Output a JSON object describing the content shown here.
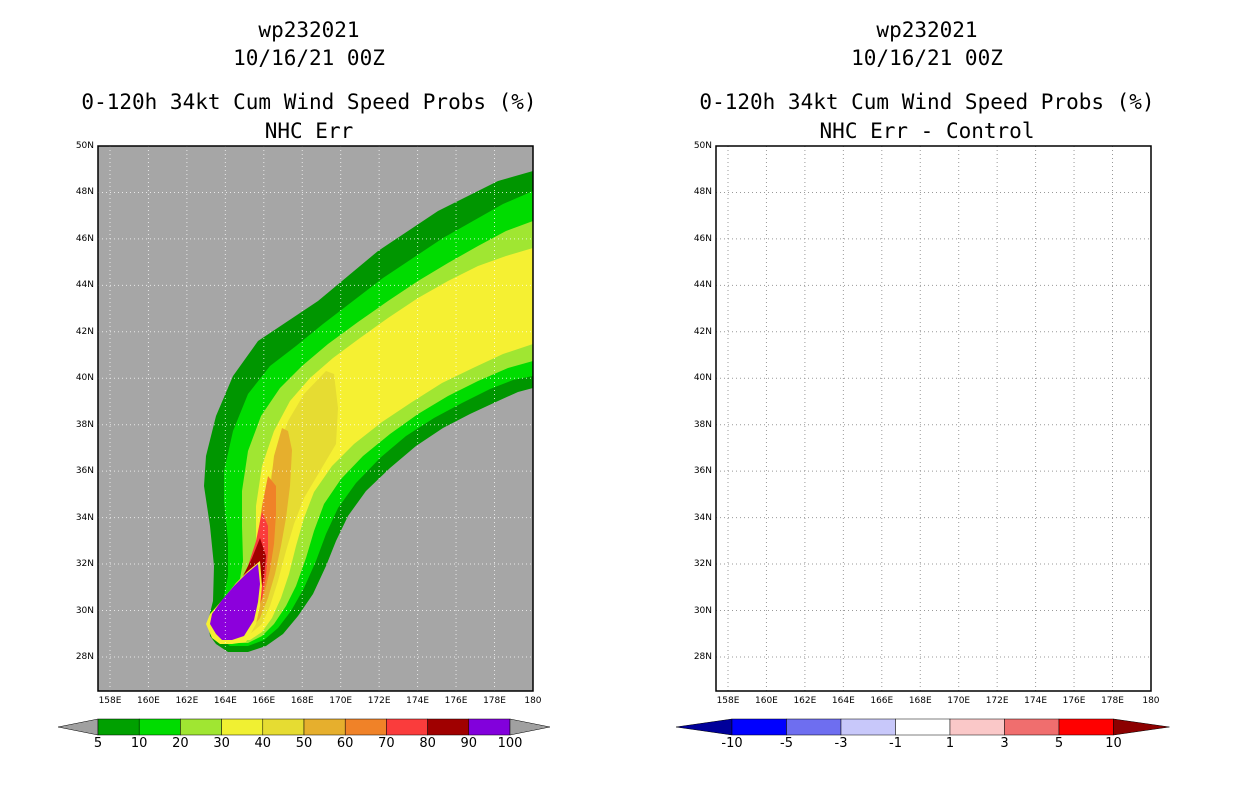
{
  "left_panel": {
    "title_line1": "wp232021",
    "title_line2": "10/16/21 00Z",
    "title_line3": "0-120h 34kt Cum Wind Speed Probs (%)",
    "title_line4": "NHC Err",
    "lat_labels": [
      "50N",
      "48N",
      "46N",
      "44N",
      "42N",
      "40N",
      "38N",
      "36N",
      "34N",
      "32N",
      "30N",
      "28N"
    ],
    "lon_labels": [
      "158E",
      "160E",
      "162E",
      "164E",
      "166E",
      "168E",
      "170E",
      "172E",
      "174E",
      "176E",
      "178E",
      "180"
    ],
    "colorbar_labels": [
      "5",
      "10",
      "20",
      "30",
      "40",
      "50",
      "60",
      "70",
      "80",
      "90",
      "100"
    ],
    "colorbar_colors": [
      "#a0a0a0",
      "#00a000",
      "#00dc00",
      "#a0e632",
      "#f0f032",
      "#e6dc32",
      "#e6af2d",
      "#f08228",
      "#fa3c3c",
      "#a00000",
      "#8200dc",
      "#a0a0a0"
    ],
    "probability_levels": [
      {
        "min": 5,
        "color": "#009600"
      },
      {
        "min": 10,
        "color": "#00dc00"
      },
      {
        "min": 20,
        "color": "#a0e632"
      },
      {
        "min": 30,
        "color": "#f5f032"
      },
      {
        "min": 40,
        "color": "#e6dc32"
      },
      {
        "min": 50,
        "color": "#e6af2d"
      },
      {
        "min": 60,
        "color": "#f08228"
      },
      {
        "min": 70,
        "color": "#fa3c3c"
      },
      {
        "min": 80,
        "color": "#a00000"
      },
      {
        "min": 90,
        "color": "#8c00dc"
      }
    ],
    "background_color": "#a6a6a6"
  },
  "right_panel": {
    "title_line1": "wp232021",
    "title_line2": "10/16/21 00Z",
    "title_line3": "0-120h 34kt Cum Wind Speed Probs (%)",
    "title_line4": "NHC Err - Control",
    "lat_labels": [
      "50N",
      "48N",
      "46N",
      "44N",
      "42N",
      "40N",
      "38N",
      "36N",
      "34N",
      "32N",
      "30N",
      "28N"
    ],
    "lon_labels": [
      "158E",
      "160E",
      "162E",
      "164E",
      "166E",
      "168E",
      "170E",
      "172E",
      "174E",
      "176E",
      "178E",
      "180"
    ],
    "colorbar_labels": [
      "-10",
      "-5",
      "-3",
      "-1",
      "1",
      "3",
      "5",
      "10"
    ],
    "colorbar_colors": [
      "#00009a",
      "#0000ff",
      "#6e6ef0",
      "#c8c8fa",
      "#ffffff",
      "#fac8c8",
      "#f06e6e",
      "#ff0000",
      "#8c0000"
    ]
  }
}
